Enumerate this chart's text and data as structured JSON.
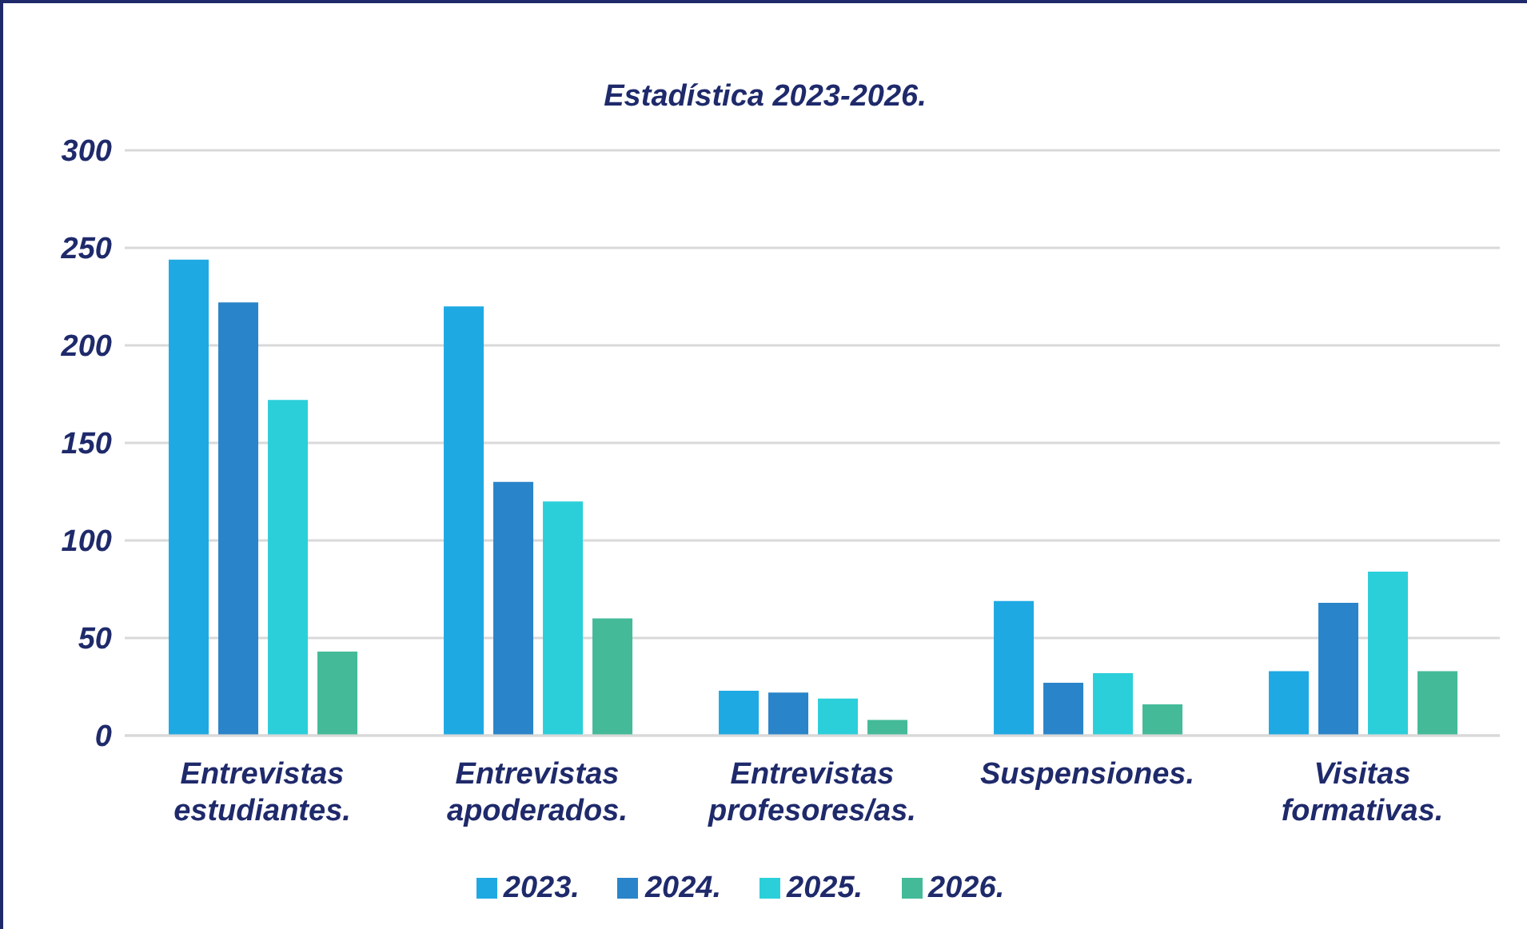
{
  "chart_data": {
    "type": "bar",
    "title": "Estadística 2023-2026.",
    "categories": [
      "Entrevistas estudiantes.",
      "Entrevistas apoderados.",
      "Entrevistas profesores/as.",
      "Suspensiones.",
      "Visitas formativas."
    ],
    "series": [
      {
        "name": "2023.",
        "color": "#1fa9e3",
        "values": [
          244,
          220,
          23,
          69,
          33
        ]
      },
      {
        "name": "2024.",
        "color": "#2a84c9",
        "values": [
          222,
          130,
          22,
          27,
          68
        ]
      },
      {
        "name": "2025.",
        "color": "#2bcfd9",
        "values": [
          172,
          120,
          19,
          32,
          84
        ]
      },
      {
        "name": "2026.",
        "color": "#44ba98",
        "values": [
          43,
          60,
          8,
          16,
          33
        ]
      }
    ],
    "ylim": [
      0,
      300
    ],
    "yticks": [
      0,
      50,
      100,
      150,
      200,
      250,
      300
    ],
    "grid": "y",
    "legend": "bottom"
  }
}
